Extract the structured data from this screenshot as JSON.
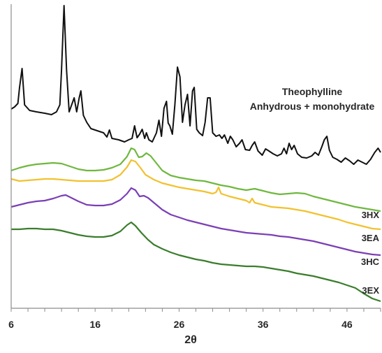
{
  "chart_data": {
    "type": "line",
    "xlabel": "2θ",
    "xlim": [
      6,
      50
    ],
    "x_ticks": [
      6,
      16,
      26,
      36,
      46
    ],
    "x_tick_labels": [
      "6",
      "16",
      "26",
      "36",
      "46"
    ],
    "y_visible": false,
    "grid": false,
    "annotation": [
      "Theophylline",
      "Anhydrous + monohydrate"
    ],
    "series": [
      {
        "name": "",
        "color": "#111111",
        "points": [
          [
            6,
            156
          ],
          [
            6.4,
            153
          ],
          [
            6.8,
            148
          ],
          [
            7.0,
            125
          ],
          [
            7.3,
            98
          ],
          [
            7.6,
            150
          ],
          [
            8.2,
            158
          ],
          [
            9,
            160
          ],
          [
            10,
            162
          ],
          [
            10.8,
            164
          ],
          [
            11.4,
            160
          ],
          [
            11.8,
            150
          ],
          [
            12.0,
            100
          ],
          [
            12.3,
            8
          ],
          [
            12.6,
            100
          ],
          [
            12.9,
            160
          ],
          [
            13.2,
            150
          ],
          [
            13.5,
            140
          ],
          [
            13.8,
            160
          ],
          [
            14.1,
            140
          ],
          [
            14.3,
            130
          ],
          [
            14.6,
            165
          ],
          [
            15,
            175
          ],
          [
            15.5,
            184
          ],
          [
            16,
            186
          ],
          [
            16.5,
            188
          ],
          [
            17,
            190
          ],
          [
            17.4,
            196
          ],
          [
            17.7,
            186
          ],
          [
            18.0,
            198
          ],
          [
            18.8,
            200
          ],
          [
            19.5,
            203
          ],
          [
            20,
            200
          ],
          [
            20.4,
            198
          ],
          [
            20.7,
            180
          ],
          [
            21.0,
            197
          ],
          [
            21.3,
            192
          ],
          [
            21.6,
            185
          ],
          [
            21.9,
            198
          ],
          [
            22.1,
            190
          ],
          [
            22.4,
            200
          ],
          [
            22.8,
            203
          ],
          [
            23.3,
            190
          ],
          [
            23.6,
            172
          ],
          [
            23.9,
            195
          ],
          [
            24.2,
            155
          ],
          [
            24.5,
            145
          ],
          [
            24.7,
            176
          ],
          [
            24.9,
            180
          ],
          [
            25.2,
            192
          ],
          [
            25.5,
            150
          ],
          [
            25.8,
            96
          ],
          [
            26.1,
            110
          ],
          [
            26.4,
            175
          ],
          [
            26.7,
            150
          ],
          [
            27.0,
            135
          ],
          [
            27.3,
            180
          ],
          [
            27.6,
            130
          ],
          [
            27.8,
            125
          ],
          [
            28.1,
            185
          ],
          [
            28.4,
            190
          ],
          [
            28.8,
            194
          ],
          [
            29.1,
            175
          ],
          [
            29.4,
            140
          ],
          [
            29.7,
            140
          ],
          [
            30.0,
            190
          ],
          [
            30.4,
            195
          ],
          [
            30.8,
            193
          ],
          [
            31.1,
            198
          ],
          [
            31.4,
            193
          ],
          [
            31.8,
            205
          ],
          [
            32.1,
            195
          ],
          [
            32.4,
            200
          ],
          [
            32.8,
            210
          ],
          [
            33.2,
            205
          ],
          [
            33.5,
            200
          ],
          [
            33.9,
            214
          ],
          [
            34.4,
            215
          ],
          [
            34.7,
            208
          ],
          [
            35.0,
            203
          ],
          [
            35.4,
            216
          ],
          [
            35.9,
            222
          ],
          [
            36.3,
            213
          ],
          [
            36.7,
            216
          ],
          [
            37.2,
            220
          ],
          [
            37.7,
            223
          ],
          [
            38.2,
            220
          ],
          [
            38.5,
            212
          ],
          [
            38.8,
            220
          ],
          [
            39.1,
            205
          ],
          [
            39.4,
            214
          ],
          [
            39.7,
            208
          ],
          [
            40.1,
            220
          ],
          [
            40.6,
            225
          ],
          [
            41.2,
            226
          ],
          [
            41.8,
            223
          ],
          [
            42.2,
            218
          ],
          [
            42.6,
            222
          ],
          [
            43.0,
            210
          ],
          [
            43.3,
            200
          ],
          [
            43.6,
            195
          ],
          [
            43.9,
            215
          ],
          [
            44.3,
            225
          ],
          [
            44.8,
            228
          ],
          [
            45.3,
            232
          ],
          [
            45.8,
            226
          ],
          [
            46.3,
            230
          ],
          [
            46.8,
            235
          ],
          [
            47.3,
            229
          ],
          [
            47.8,
            232
          ],
          [
            48.3,
            235
          ],
          [
            48.8,
            228
          ],
          [
            49.3,
            218
          ],
          [
            49.7,
            212
          ],
          [
            50,
            218
          ]
        ]
      },
      {
        "name": "3HX",
        "color": "#6fb83f",
        "points": [
          [
            6,
            244
          ],
          [
            7,
            240
          ],
          [
            8,
            237
          ],
          [
            9,
            235
          ],
          [
            10,
            234
          ],
          [
            11,
            233
          ],
          [
            12,
            234
          ],
          [
            13,
            238
          ],
          [
            14,
            242
          ],
          [
            15,
            244
          ],
          [
            16,
            244
          ],
          [
            17,
            243
          ],
          [
            18,
            240
          ],
          [
            19,
            235
          ],
          [
            19.8,
            224
          ],
          [
            20.3,
            212
          ],
          [
            20.7,
            214
          ],
          [
            21.2,
            225
          ],
          [
            21.6,
            224
          ],
          [
            22.1,
            219
          ],
          [
            22.6,
            223
          ],
          [
            23.2,
            232
          ],
          [
            24,
            244
          ],
          [
            25,
            251
          ],
          [
            26,
            254
          ],
          [
            27,
            256
          ],
          [
            28,
            258
          ],
          [
            29,
            259
          ],
          [
            30,
            262
          ],
          [
            31,
            265
          ],
          [
            32,
            267
          ],
          [
            33,
            270
          ],
          [
            34,
            272
          ],
          [
            35,
            270
          ],
          [
            36,
            273
          ],
          [
            37,
            276
          ],
          [
            38,
            278
          ],
          [
            39,
            277
          ],
          [
            40,
            276
          ],
          [
            41,
            277
          ],
          [
            42,
            281
          ],
          [
            43,
            284
          ],
          [
            44,
            287
          ],
          [
            45,
            290
          ],
          [
            46,
            293
          ],
          [
            47,
            296
          ],
          [
            48,
            298
          ],
          [
            49,
            300
          ],
          [
            50,
            302
          ]
        ]
      },
      {
        "name": "3EA",
        "color": "#f2c12e",
        "points": [
          [
            6,
            256
          ],
          [
            7,
            259
          ],
          [
            8,
            258
          ],
          [
            9,
            257
          ],
          [
            10,
            256
          ],
          [
            11,
            256
          ],
          [
            12,
            257
          ],
          [
            13,
            258
          ],
          [
            14,
            259
          ],
          [
            15,
            259
          ],
          [
            16,
            259
          ],
          [
            17,
            259
          ],
          [
            18,
            257
          ],
          [
            19,
            250
          ],
          [
            19.8,
            239
          ],
          [
            20.3,
            229
          ],
          [
            20.8,
            231
          ],
          [
            21.4,
            240
          ],
          [
            22,
            250
          ],
          [
            23,
            257
          ],
          [
            24,
            262
          ],
          [
            25,
            265
          ],
          [
            26,
            268
          ],
          [
            27,
            270
          ],
          [
            28,
            272
          ],
          [
            29,
            274
          ],
          [
            30,
            277
          ],
          [
            30.4,
            275
          ],
          [
            30.7,
            268
          ],
          [
            31.0,
            277
          ],
          [
            32,
            281
          ],
          [
            33,
            284
          ],
          [
            34,
            287
          ],
          [
            34.4,
            290
          ],
          [
            34.7,
            284
          ],
          [
            35.0,
            290
          ],
          [
            36,
            293
          ],
          [
            37,
            296
          ],
          [
            38,
            297
          ],
          [
            39,
            298
          ],
          [
            40,
            300
          ],
          [
            41,
            302
          ],
          [
            42,
            305
          ],
          [
            43,
            308
          ],
          [
            44,
            311
          ],
          [
            45,
            314
          ],
          [
            46,
            318
          ],
          [
            47,
            321
          ],
          [
            48,
            324
          ],
          [
            49,
            327
          ],
          [
            50,
            328
          ]
        ]
      },
      {
        "name": "3HC",
        "color": "#7b3fb5",
        "points": [
          [
            6,
            296
          ],
          [
            7,
            293
          ],
          [
            8,
            290
          ],
          [
            9,
            288
          ],
          [
            10,
            287
          ],
          [
            11,
            284
          ],
          [
            12,
            280
          ],
          [
            12.5,
            279
          ],
          [
            13,
            282
          ],
          [
            14,
            288
          ],
          [
            15,
            293
          ],
          [
            16,
            294
          ],
          [
            17,
            294
          ],
          [
            18,
            292
          ],
          [
            19,
            286
          ],
          [
            19.8,
            277
          ],
          [
            20.3,
            269
          ],
          [
            20.8,
            272
          ],
          [
            21.3,
            281
          ],
          [
            21.8,
            280
          ],
          [
            22.3,
            283
          ],
          [
            23,
            290
          ],
          [
            24,
            300
          ],
          [
            25,
            307
          ],
          [
            26,
            311
          ],
          [
            27,
            315
          ],
          [
            28,
            318
          ],
          [
            29,
            321
          ],
          [
            30,
            324
          ],
          [
            31,
            327
          ],
          [
            32,
            329
          ],
          [
            33,
            331
          ],
          [
            34,
            333
          ],
          [
            35,
            334
          ],
          [
            36,
            335
          ],
          [
            37,
            336
          ],
          [
            38,
            338
          ],
          [
            39,
            339
          ],
          [
            40,
            341
          ],
          [
            41,
            343
          ],
          [
            42,
            345
          ],
          [
            43,
            348
          ],
          [
            44,
            351
          ],
          [
            45,
            354
          ],
          [
            46,
            357
          ],
          [
            47,
            360
          ],
          [
            48,
            362
          ],
          [
            49,
            364
          ],
          [
            50,
            365
          ]
        ]
      },
      {
        "name": "3EX",
        "color": "#3a7d2c",
        "points": [
          [
            6,
            328
          ],
          [
            7,
            328
          ],
          [
            8,
            327
          ],
          [
            9,
            327
          ],
          [
            10,
            328
          ],
          [
            11,
            328
          ],
          [
            12,
            330
          ],
          [
            13,
            333
          ],
          [
            14,
            336
          ],
          [
            15,
            338
          ],
          [
            16,
            339
          ],
          [
            17,
            339
          ],
          [
            18,
            337
          ],
          [
            19,
            331
          ],
          [
            19.8,
            322
          ],
          [
            20.3,
            318
          ],
          [
            20.8,
            323
          ],
          [
            21.5,
            333
          ],
          [
            22.3,
            343
          ],
          [
            23,
            350
          ],
          [
            24,
            356
          ],
          [
            25,
            361
          ],
          [
            26,
            365
          ],
          [
            27,
            368
          ],
          [
            28,
            371
          ],
          [
            29,
            373
          ],
          [
            30,
            376
          ],
          [
            31,
            378
          ],
          [
            32,
            379
          ],
          [
            33,
            380
          ],
          [
            34,
            381
          ],
          [
            35,
            381
          ],
          [
            36,
            382
          ],
          [
            37,
            384
          ],
          [
            38,
            386
          ],
          [
            39,
            388
          ],
          [
            40,
            391
          ],
          [
            41,
            393
          ],
          [
            42,
            395
          ],
          [
            43,
            398
          ],
          [
            44,
            401
          ],
          [
            45,
            404
          ],
          [
            46,
            408
          ],
          [
            47,
            412
          ],
          [
            48,
            420
          ],
          [
            49,
            427
          ],
          [
            50,
            431
          ]
        ]
      }
    ]
  }
}
